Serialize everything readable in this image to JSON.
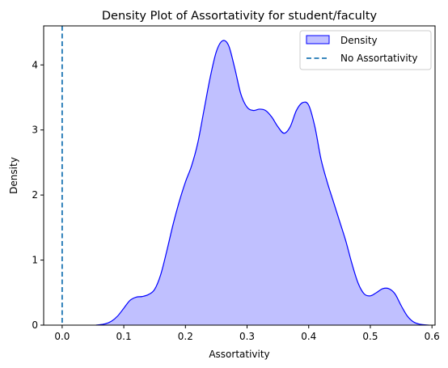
{
  "chart_data": {
    "type": "area",
    "title": "Density Plot of Assortativity for student/faculty",
    "xlabel": "Assortativity",
    "ylabel": "Density",
    "xlim": [
      -0.03,
      0.605
    ],
    "ylim": [
      0,
      4.6
    ],
    "xticks": [
      0.0,
      0.1,
      0.2,
      0.3,
      0.4,
      0.5,
      0.6
    ],
    "xtick_labels": [
      "0.0",
      "0.1",
      "0.2",
      "0.3",
      "0.4",
      "0.5",
      "0.6"
    ],
    "yticks": [
      0,
      1,
      2,
      3,
      4
    ],
    "ytick_labels": [
      "0",
      "1",
      "2",
      "3",
      "4"
    ],
    "grid": false,
    "legend_position": "top-right",
    "series": [
      {
        "name": "Density",
        "kind": "filled-density",
        "line_color": "#0000ff",
        "fill_color": "#c0c0ff",
        "x": [
          0.055,
          0.07,
          0.08,
          0.09,
          0.1,
          0.11,
          0.12,
          0.13,
          0.14,
          0.15,
          0.16,
          0.17,
          0.18,
          0.19,
          0.2,
          0.21,
          0.22,
          0.23,
          0.24,
          0.25,
          0.26,
          0.27,
          0.28,
          0.29,
          0.3,
          0.31,
          0.32,
          0.33,
          0.34,
          0.35,
          0.36,
          0.37,
          0.38,
          0.39,
          0.4,
          0.41,
          0.42,
          0.43,
          0.44,
          0.45,
          0.46,
          0.47,
          0.48,
          0.49,
          0.5,
          0.51,
          0.52,
          0.53,
          0.54,
          0.55,
          0.56,
          0.57,
          0.58,
          0.595
        ],
        "y": [
          0.0,
          0.02,
          0.06,
          0.14,
          0.26,
          0.38,
          0.43,
          0.44,
          0.47,
          0.55,
          0.78,
          1.15,
          1.55,
          1.9,
          2.2,
          2.45,
          2.8,
          3.3,
          3.8,
          4.2,
          4.37,
          4.3,
          3.95,
          3.55,
          3.35,
          3.3,
          3.32,
          3.3,
          3.2,
          3.05,
          2.95,
          3.05,
          3.3,
          3.42,
          3.38,
          3.05,
          2.55,
          2.2,
          1.9,
          1.6,
          1.3,
          0.95,
          0.65,
          0.48,
          0.45,
          0.5,
          0.56,
          0.56,
          0.48,
          0.3,
          0.14,
          0.05,
          0.015,
          0.0
        ]
      },
      {
        "name": "No Assortativity",
        "kind": "vertical-line",
        "line_color": "#1f77b4",
        "line_style": "dashed",
        "x": 0.0
      }
    ]
  }
}
